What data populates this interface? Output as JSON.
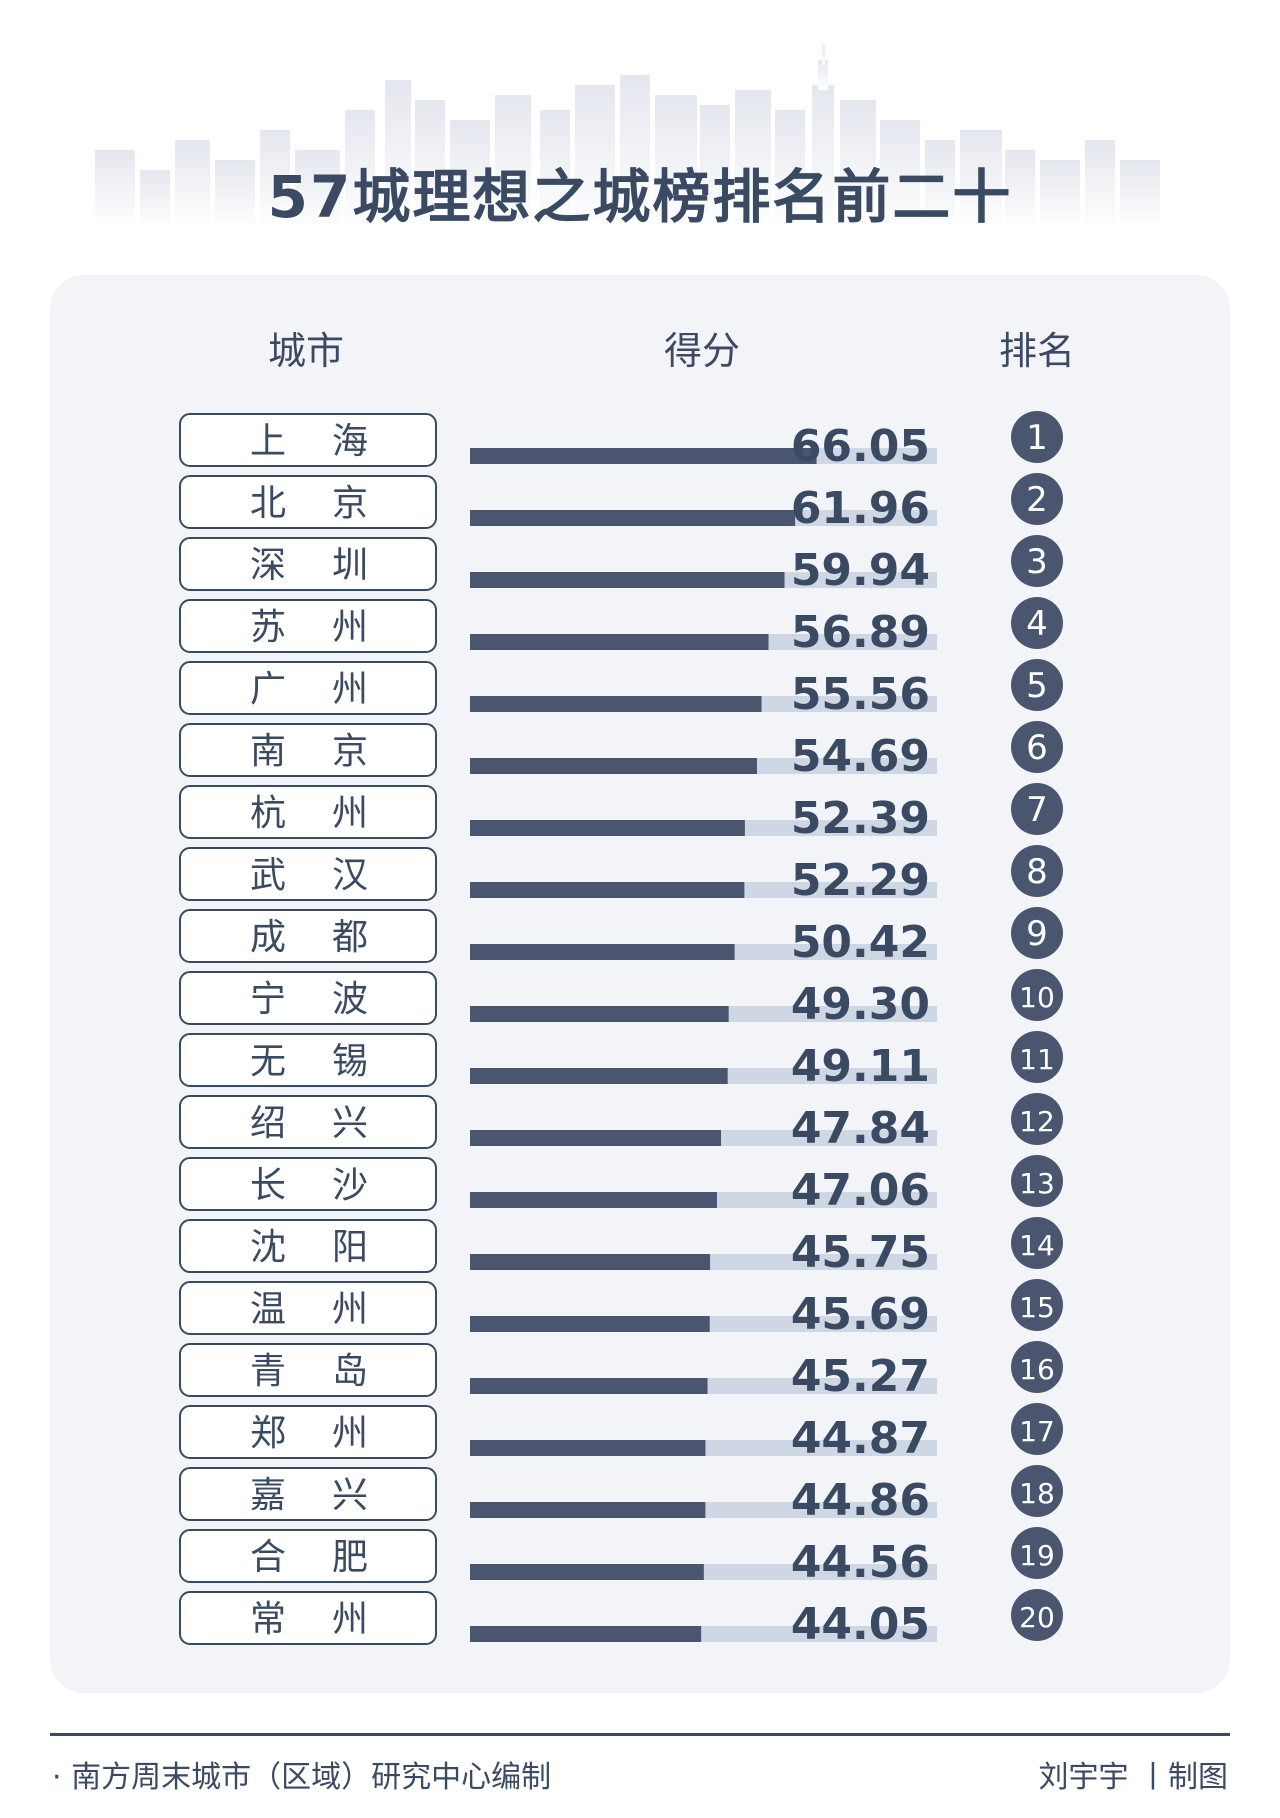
{
  "title": "57城理想之城榜排名前二十",
  "headers": {
    "city": "城市",
    "score": "得分",
    "rank": "排名"
  },
  "colors": {
    "bar": "#4a5570",
    "track": "#cfd6e4",
    "text": "#3b4a63",
    "panel": "#f3f4f8",
    "skyline": "#e9ebf1"
  },
  "chart_data": {
    "type": "bar",
    "orientation": "horizontal",
    "title": "57城理想之城榜排名前二十",
    "xlabel": "",
    "ylabel": "",
    "xlim": [
      0,
      89
    ],
    "categories": [
      "上 海",
      "北 京",
      "深 圳",
      "苏 州",
      "广 州",
      "南 京",
      "杭 州",
      "武 汉",
      "成 都",
      "宁 波",
      "无 锡",
      "绍 兴",
      "长 沙",
      "沈 阳",
      "温 州",
      "青 岛",
      "郑 州",
      "嘉 兴",
      "合 肥",
      "常 州"
    ],
    "values": [
      66.05,
      61.96,
      59.94,
      56.89,
      55.56,
      54.69,
      52.39,
      52.29,
      50.42,
      49.3,
      49.11,
      47.84,
      47.06,
      45.75,
      45.69,
      45.27,
      44.87,
      44.86,
      44.56,
      44.05
    ],
    "value_labels": [
      "66.05",
      "61.96",
      "59.94",
      "56.89",
      "55.56",
      "54.69",
      "52.39",
      "52.29",
      "50.42",
      "49.30",
      "49.11",
      "47.84",
      "47.06",
      "45.75",
      "45.69",
      "45.27",
      "44.87",
      "44.86",
      "44.56",
      "44.05"
    ],
    "ranks": [
      "1",
      "2",
      "3",
      "4",
      "5",
      "6",
      "7",
      "8",
      "9",
      "10",
      "11",
      "12",
      "13",
      "14",
      "15",
      "16",
      "17",
      "18",
      "19",
      "20"
    ],
    "grid": false,
    "legend": "none"
  },
  "footer": {
    "source": "· 南方周末城市（区域）研究中心编制",
    "credit": "刘宇宇 丨制图"
  }
}
